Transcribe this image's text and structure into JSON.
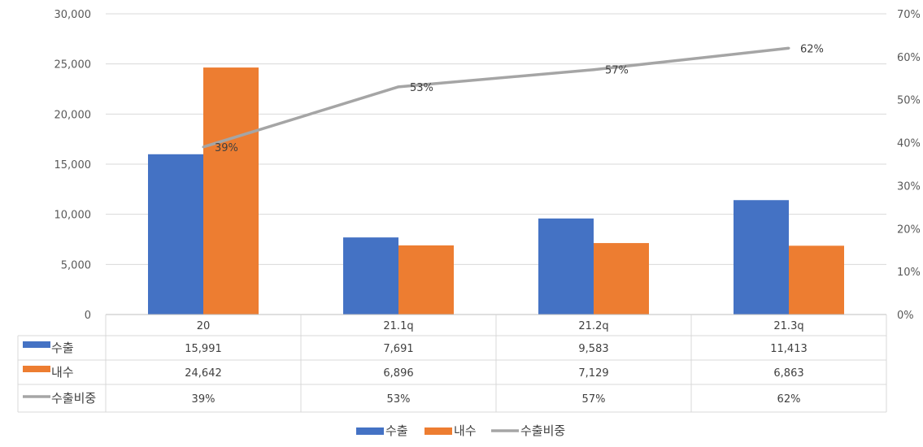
{
  "chart_data": {
    "type": "bar",
    "categories": [
      "20",
      "21.1q",
      "21.2q",
      "21.3q"
    ],
    "series": [
      {
        "name": "수출",
        "type": "bar",
        "axis": "left",
        "color": "#4472C4",
        "values": [
          15991,
          7691,
          9583,
          11413
        ],
        "table_values": [
          "15,991",
          "7,691",
          "9,583",
          "11,413"
        ]
      },
      {
        "name": "내수",
        "type": "bar",
        "axis": "left",
        "color": "#ED7D31",
        "values": [
          24642,
          6896,
          7129,
          6863
        ],
        "table_values": [
          "24,642",
          "6,896",
          "7,129",
          "6,863"
        ]
      },
      {
        "name": "수출비중",
        "type": "line",
        "axis": "right",
        "color": "#A5A5A5",
        "values": [
          39,
          53,
          57,
          62
        ],
        "table_values": [
          "39%",
          "53%",
          "57%",
          "62%"
        ]
      }
    ],
    "data_labels": [
      "39%",
      "53%",
      "57%",
      "62%"
    ],
    "y_left": {
      "min": 0,
      "max": 30000,
      "ticks": [
        "0",
        "5,000",
        "10,000",
        "15,000",
        "20,000",
        "25,000",
        "30,000"
      ],
      "tick_values": [
        0,
        5000,
        10000,
        15000,
        20000,
        25000,
        30000
      ]
    },
    "y_right": {
      "min": 0,
      "max": 70,
      "ticks": [
        "0%",
        "10%",
        "20%",
        "30%",
        "40%",
        "50%",
        "60%",
        "70%"
      ],
      "tick_values": [
        0,
        10,
        20,
        30,
        40,
        50,
        60,
        70
      ]
    },
    "grid": true,
    "data_table": true,
    "legend_position": "bottom"
  }
}
